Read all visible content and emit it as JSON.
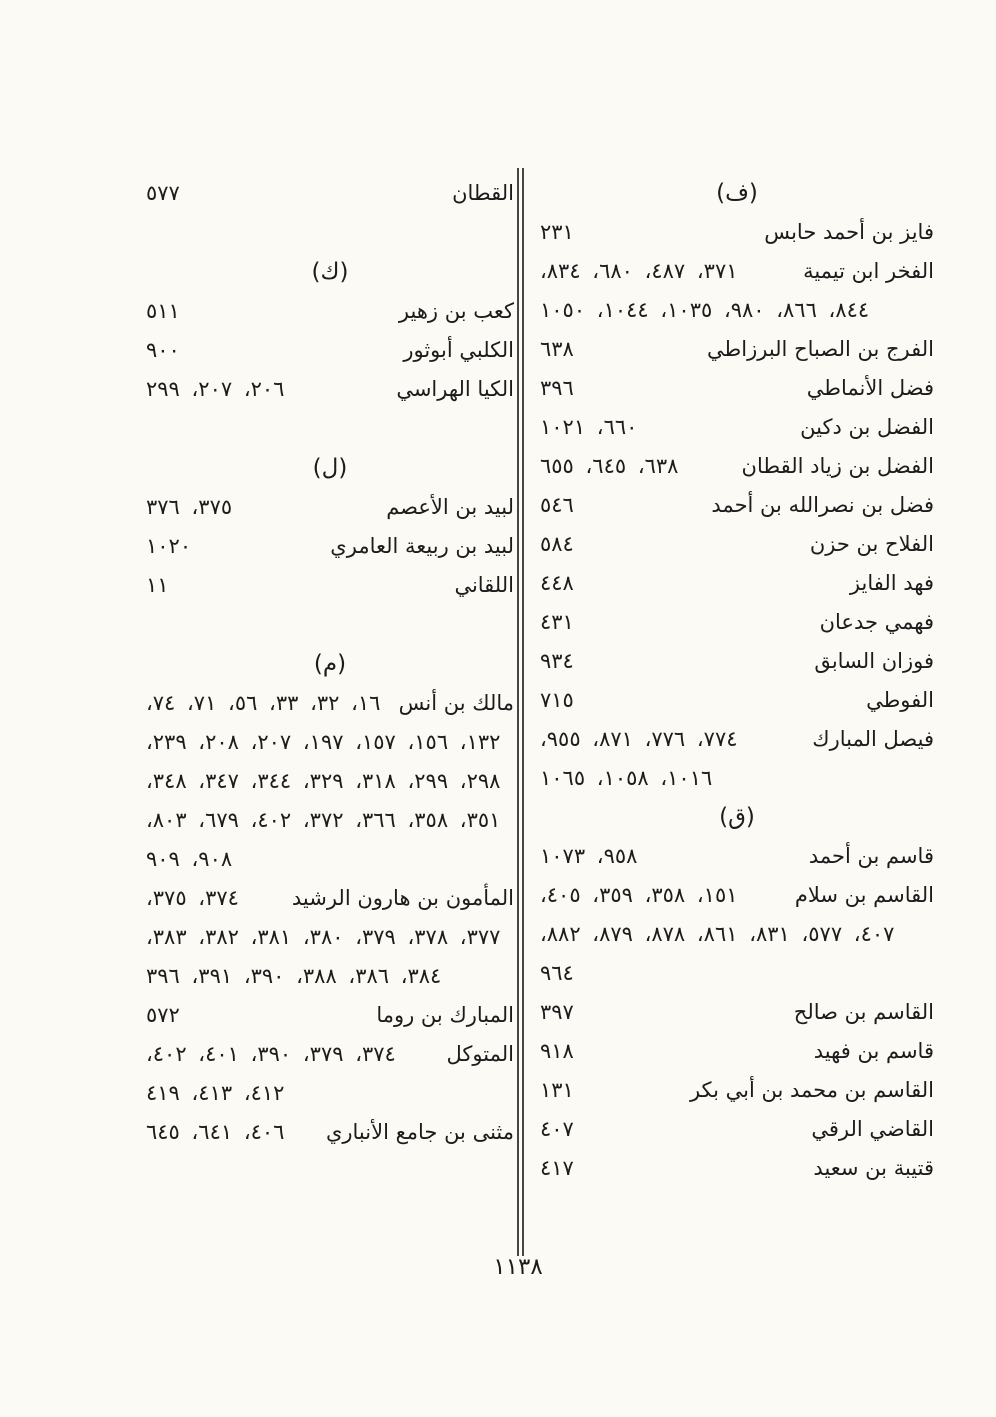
{
  "page_number": "١١٣٨",
  "colors": {
    "background": "#fbfaf5",
    "text": "#1c1c1c",
    "divider": "#454545"
  },
  "columns": {
    "right": {
      "sections": [
        {
          "header": "(ف)",
          "entries": [
            {
              "name": "فايز بن أحمد حابس",
              "pages": "٢٣١"
            },
            {
              "name": "الفخر ابن تيمية",
              "pages": "٣٧١، ٤٨٧، ٦٨٠، ٨٣٤، ٨٤٤، ٨٦٦، ٩٨٠، ١٠٣٥، ١٠٤٤، ١٠٥٠"
            },
            {
              "name": "الفرج بن الصباح البرزاطي",
              "pages": "٦٣٨"
            },
            {
              "name": "فضل الأنماطي",
              "pages": "٣٩٦"
            },
            {
              "name": "الفضل بن دكين",
              "pages": "٦٦٠، ١٠٢١"
            },
            {
              "name": "الفضل بن زياد القطان",
              "pages": "٦٣٨، ٦٤٥، ٦٥٥"
            },
            {
              "name": "فضل بن نصرالله بن أحمد",
              "pages": "٥٤٦"
            },
            {
              "name": "الفلاح بن حزن",
              "pages": "٥٨٤"
            },
            {
              "name": "فهد الفايز",
              "pages": "٤٤٨"
            },
            {
              "name": "فهمي جدعان",
              "pages": "٤٣١"
            },
            {
              "name": "فوزان السابق",
              "pages": "٩٣٤"
            },
            {
              "name": "الفوطي",
              "pages": "٧١٥"
            },
            {
              "name": "فيصل المبارك",
              "pages": "٧٧٤، ٧٧٦، ٨٧١، ٩٥٥، ١٠١٦، ١٠٥٨، ١٠٦٥"
            }
          ]
        },
        {
          "header": "(ق)",
          "entries": [
            {
              "name": "قاسم بن أحمد",
              "pages": "٩٥٨، ١٠٧٣"
            },
            {
              "name": "القاسم بن سلام",
              "pages": "١٥١، ٣٥٨، ٣٥٩، ٤٠٥، ٤٠٧، ٥٧٧، ٨٣١، ٨٦١، ٨٧٨، ٨٧٩، ٨٨٢، ٩٦٤"
            },
            {
              "name": "القاسم بن صالح",
              "pages": "٣٩٧"
            },
            {
              "name": "قاسم بن فهيد",
              "pages": "٩١٨"
            },
            {
              "name": "القاسم بن محمد بن أبي بكر",
              "pages": "١٣١"
            },
            {
              "name": "القاضي الرقي",
              "pages": "٤٠٧"
            },
            {
              "name": "قتيبة بن سعيد",
              "pages": "٤١٧"
            }
          ]
        }
      ]
    },
    "left": {
      "sections": [
        {
          "header": "",
          "entries": [
            {
              "name": "القطان",
              "pages": "٥٧٧"
            }
          ]
        },
        {
          "header": "(ك)",
          "entries": [
            {
              "name": "كعب بن زهير",
              "pages": "٥١١"
            },
            {
              "name": "الكلبي أبوثور",
              "pages": "٩٠٠"
            },
            {
              "name": "الكيا الهراسي",
              "pages": "٢٠٦، ٢٠٧، ٢٩٩"
            }
          ]
        },
        {
          "header": "(ل)",
          "entries": [
            {
              "name": "لبيد بن الأعصم",
              "pages": "٣٧٥، ٣٧٦"
            },
            {
              "name": "لبيد بن ربيعة العامري",
              "pages": "١٠٢٠"
            },
            {
              "name": "اللقاني",
              "pages": "١١"
            }
          ]
        },
        {
          "header": "(م)",
          "entries": [
            {
              "name": "مالك بن أنس",
              "pages": "١٦، ٣٢، ٣٣، ٥٦، ٧١، ٧٤، ١٣٢، ١٥٦، ١٥٧، ١٩٧، ٢٠٧، ٢٠٨، ٢٣٩، ٢٩٨، ٢٩٩، ٣١٨، ٣٢٩، ٣٤٤، ٣٤٧، ٣٤٨، ٣٥١، ٣٥٨، ٣٦٦، ٣٧٢، ٤٠٢، ٦٧٩، ٨٠٣، ٩٠٨، ٩٠٩"
            },
            {
              "name": "المأمون بن هارون الرشيد",
              "pages": "٣٧٤، ٣٧٥، ٣٧٧، ٣٧٨، ٣٧٩، ٣٨٠، ٣٨١، ٣٨٢، ٣٨٣، ٣٨٤، ٣٨٦، ٣٨٨، ٣٩٠، ٣٩١، ٣٩٦"
            },
            {
              "name": "المبارك بن روما",
              "pages": "٥٧٢"
            },
            {
              "name": "المتوكل",
              "pages": "٣٧٤، ٣٧٩، ٣٩٠، ٤٠١، ٤٠٢، ٤١٢، ٤١٣، ٤١٩"
            },
            {
              "name": "مثنى بن جامع الأنباري",
              "pages": "٤٠٦، ٦٤١، ٦٤٥"
            }
          ]
        }
      ]
    }
  }
}
